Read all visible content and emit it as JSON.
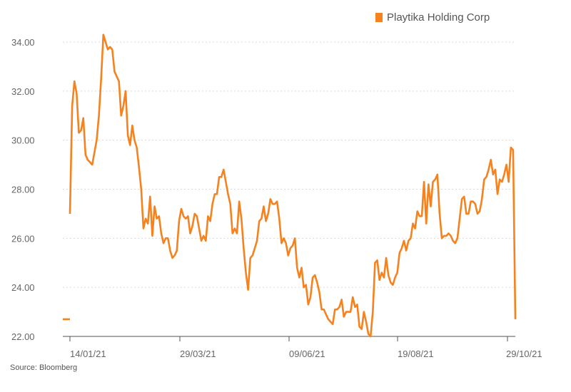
{
  "chart_data": {
    "type": "line",
    "title": "",
    "xlabel": "",
    "ylabel": "",
    "ylim": [
      22,
      34.6
    ],
    "grid": "horizontal dotted",
    "legend_position": "top-right",
    "yticks": [
      "22.00",
      "24.00",
      "26.00",
      "28.00",
      "30.00",
      "32.00",
      "34.00"
    ],
    "xticks": [
      "14/01/21",
      "29/03/21",
      "09/06/21",
      "19/08/21",
      "29/10/21"
    ],
    "series": [
      {
        "name": "Playtika Holding Corp",
        "color": "#F5821F",
        "values": [
          27.0,
          31.4,
          32.4,
          31.9,
          30.3,
          30.4,
          30.9,
          29.4,
          29.2,
          29.1,
          29.0,
          29.5,
          30.0,
          31.0,
          32.5,
          34.3,
          34.0,
          33.7,
          33.8,
          33.7,
          32.8,
          32.6,
          32.4,
          31.0,
          31.4,
          32.0,
          30.2,
          29.8,
          30.6,
          30.0,
          29.7,
          28.9,
          28.0,
          26.4,
          26.8,
          26.6,
          27.7,
          26.1,
          27.3,
          26.8,
          26.9,
          26.2,
          25.8,
          26.0,
          26.0,
          25.5,
          25.2,
          25.3,
          25.5,
          26.7,
          27.2,
          26.9,
          26.8,
          26.9,
          26.2,
          26.5,
          27.0,
          26.9,
          26.4,
          25.9,
          26.1,
          25.9,
          26.9,
          26.7,
          27.4,
          27.8,
          27.8,
          28.5,
          28.5,
          28.8,
          28.3,
          27.8,
          27.4,
          26.2,
          26.4,
          26.2,
          27.5,
          26.8,
          25.6,
          24.6,
          23.9,
          25.2,
          25.3,
          25.6,
          25.9,
          26.7,
          26.8,
          27.3,
          26.7,
          27.0,
          27.6,
          27.4,
          27.4,
          27.5,
          26.8,
          25.8,
          26.0,
          25.8,
          25.3,
          25.6,
          25.7,
          26.0,
          24.8,
          24.4,
          24.8,
          24.0,
          24.1,
          23.3,
          23.6,
          24.4,
          24.5,
          24.2,
          23.8,
          23.1,
          23.1,
          22.9,
          22.7,
          22.6,
          22.5,
          23.1,
          23.1,
          23.2,
          23.5,
          22.8,
          23.0,
          23.0,
          23.0,
          23.6,
          23.2,
          23.3,
          22.4,
          22.3,
          23.0,
          22.6,
          22.1,
          22.0,
          23.0,
          25.0,
          25.1,
          24.3,
          24.6,
          24.4,
          25.2,
          24.5,
          24.2,
          24.1,
          24.4,
          24.6,
          25.4,
          25.6,
          25.9,
          25.5,
          25.9,
          26.0,
          26.6,
          26.4,
          27.1,
          26.9,
          26.9,
          28.3,
          26.6,
          28.2,
          27.3,
          28.3,
          28.4,
          28.6,
          27.0,
          26.0,
          26.1,
          26.1,
          26.2,
          26.1,
          25.9,
          25.8,
          26.0,
          26.8,
          27.6,
          27.7,
          27.0,
          27.0,
          27.5,
          27.5,
          27.4,
          27.0,
          27.1,
          27.6,
          28.4,
          28.5,
          28.8,
          29.2,
          28.6,
          28.8,
          27.8,
          28.4,
          28.3,
          28.6,
          29.0,
          28.3,
          29.7,
          29.6,
          22.7
        ]
      }
    ],
    "markers": [
      {
        "y": 22.7,
        "note": "short orange tick at left edge"
      }
    ]
  },
  "legend": {
    "label": "Playtika Holding Corp"
  },
  "source": "Source: Bloomberg"
}
